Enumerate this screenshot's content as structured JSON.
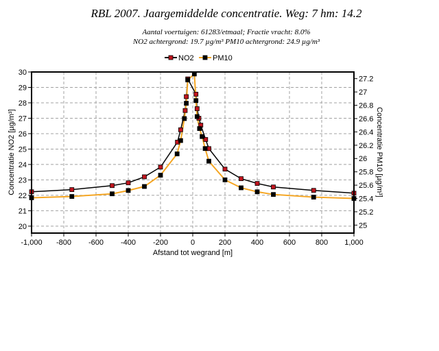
{
  "chart_data": {
    "type": "line",
    "title": "RBL 2007. Jaargemiddelde concentratie. Weg: 7 hm: 14.2",
    "subtitle_lines": [
      "Aantal voertuigen: 61283/etmaal; Fractie vracht: 8.0%",
      "NO2 achtergrond: 19.7 µg/m³ PM10 achtergrond: 24.9 µg/m³"
    ],
    "xlabel": "Afstand tot wegrand [m]",
    "ylabel": "Concentratie NO2 [µg/m³]",
    "y2label": "Concentratie PM10 [µg/m³]",
    "xlim": [
      -1000,
      1000
    ],
    "ylim": [
      19.55,
      30.0
    ],
    "y2lim": [
      24.88,
      27.3
    ],
    "xticks": [
      -1000,
      -800,
      -600,
      -400,
      -200,
      0,
      200,
      400,
      600,
      800,
      1000
    ],
    "xtick_labels": [
      "-1,000",
      "-800",
      "-600",
      "-400",
      "-200",
      "0",
      "200",
      "400",
      "600",
      "800",
      "1,000"
    ],
    "yticks": [
      20,
      21,
      22,
      23,
      24,
      25,
      26,
      27,
      28,
      29,
      30
    ],
    "y2ticks": [
      25,
      25.2,
      25.4,
      25.6,
      25.8,
      26,
      26.2,
      26.4,
      26.6,
      26.8,
      27,
      27.2
    ],
    "y2tick_labels": [
      "25",
      "25.2",
      "25.4",
      "25.6",
      "25.8",
      "26",
      "26.2",
      "26.4",
      "26.6",
      "26.8",
      "27",
      "27.2"
    ],
    "grid": true,
    "legend_position": "top-center",
    "series": [
      {
        "name": "NO2",
        "axis": "left",
        "line_color": "#000000",
        "marker_color": "#c0141e",
        "x": [
          -1000,
          -750,
          -500,
          -400,
          -300,
          -200,
          -95,
          -75,
          -47,
          -40,
          -31,
          20,
          27,
          38,
          50,
          80,
          100,
          200,
          300,
          400,
          500,
          750,
          1000
        ],
        "y": [
          22.23,
          22.37,
          22.63,
          22.81,
          23.2,
          23.83,
          25.45,
          26.25,
          27.5,
          28.4,
          29.55,
          28.56,
          27.62,
          27.0,
          26.55,
          25.62,
          25.03,
          23.7,
          23.08,
          22.77,
          22.54,
          22.32,
          22.14
        ]
      },
      {
        "name": "PM10",
        "axis": "right",
        "line_color": "#f5a623",
        "marker_color": "#000000",
        "x": [
          -1000,
          -750,
          -500,
          -400,
          -300,
          -200,
          -97,
          -75,
          -52,
          -40,
          -31,
          10,
          20,
          27,
          42,
          58,
          77,
          100,
          200,
          300,
          400,
          500,
          750,
          1000
        ],
        "y": [
          25.41,
          25.43,
          25.47,
          25.52,
          25.58,
          25.75,
          26.07,
          26.27,
          26.6,
          26.83,
          27.18,
          27.27,
          26.87,
          26.63,
          26.45,
          26.33,
          26.15,
          25.96,
          25.68,
          25.56,
          25.5,
          25.46,
          25.42,
          25.4
        ]
      }
    ]
  }
}
